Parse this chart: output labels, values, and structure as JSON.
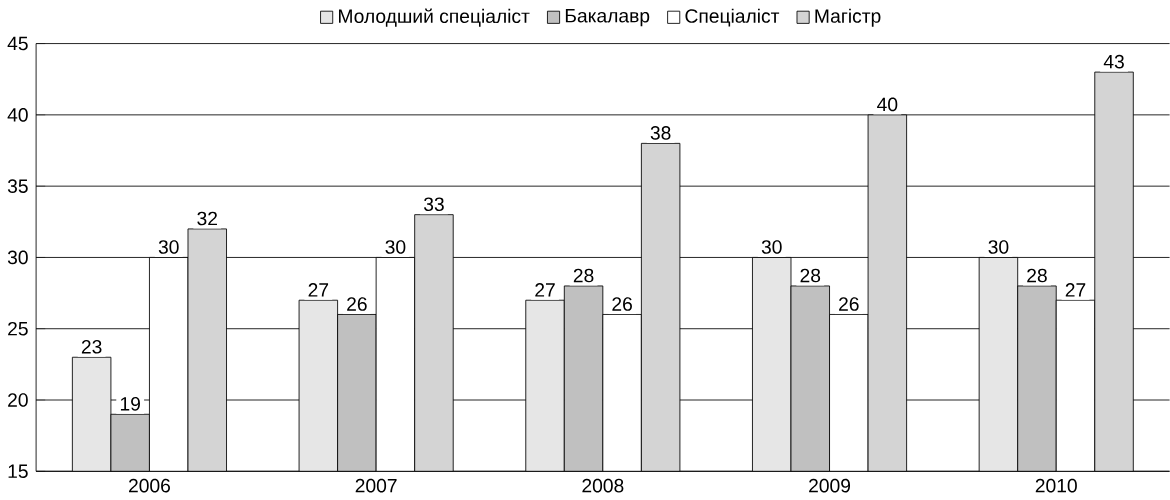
{
  "chart_data": {
    "type": "bar",
    "categories": [
      "2006",
      "2007",
      "2008",
      "2009",
      "2010"
    ],
    "series": [
      {
        "name": "Молодший спеціаліст",
        "color": "#e6e6e6",
        "values": [
          23,
          27,
          27,
          30,
          30
        ]
      },
      {
        "name": "Бакалавр",
        "color": "#c0c0c0",
        "values": [
          19,
          26,
          28,
          28,
          28
        ]
      },
      {
        "name": "Спеціаліст",
        "color": "#ffffff",
        "values": [
          30,
          30,
          26,
          26,
          27
        ]
      },
      {
        "name": "Магістр",
        "color": "#d4d4d4",
        "values": [
          32,
          33,
          38,
          40,
          43
        ]
      }
    ],
    "ylim": [
      15,
      45
    ],
    "yticks": [
      15,
      20,
      25,
      30,
      35,
      40,
      45
    ],
    "grid": "y",
    "legend": "top",
    "data_labels": true
  }
}
